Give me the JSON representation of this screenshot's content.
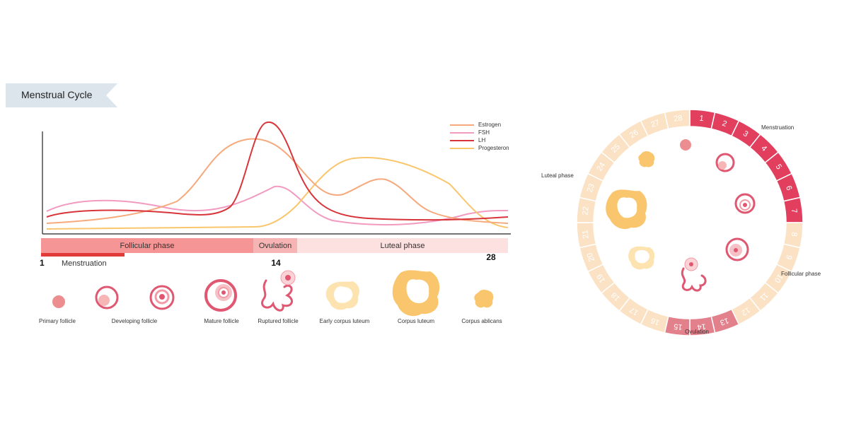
{
  "title": "Menstrual Cycle",
  "legend": [
    {
      "name": "Estrogen",
      "color": "#f6a97c"
    },
    {
      "name": "FSH",
      "color": "#f29ac0"
    },
    {
      "name": "LH",
      "color": "#d8353a"
    },
    {
      "name": "Progesteron",
      "color": "#f9c66e"
    }
  ],
  "phases": {
    "follicular": "Follicular phase",
    "ovulation": "Ovulation",
    "luteal": "Luteal phase",
    "menstruation": "Menstruation"
  },
  "days": {
    "start": "1",
    "ovulation": "14",
    "end": "28"
  },
  "stages": [
    {
      "label": "Primary follicle",
      "icon": "primary-follicle-icon"
    },
    {
      "label": "Developing follicle",
      "icon": "developing-follicle-icon"
    },
    {
      "label": "Mature follicle",
      "icon": "mature-follicle-icon"
    },
    {
      "label": "Ruptured follicle",
      "icon": "ruptured-follicle-icon"
    },
    {
      "label": "Early corpus luteum",
      "icon": "early-corpus-luteum-icon"
    },
    {
      "label": "Corpus luteum",
      "icon": "corpus-luteum-icon"
    },
    {
      "label": "Corpus ablicans",
      "icon": "corpus-albicans-icon"
    }
  ],
  "wheel": {
    "days": [
      "1",
      "2",
      "3",
      "4",
      "5",
      "6",
      "7",
      "8",
      "9",
      "10",
      "11",
      "12",
      "13",
      "14",
      "15",
      "16",
      "17",
      "18",
      "19",
      "20",
      "21",
      "22",
      "23",
      "24",
      "25",
      "26",
      "27",
      "28"
    ],
    "labels": {
      "menstruation": "Menstruation",
      "follicular": "Follicular phase",
      "ovulation": "Ovulation",
      "luteal": "Luteal phase"
    },
    "colors": {
      "menstruation": "#e23e5e",
      "ovulation": "#e2818c",
      "other": "#fbe2c4"
    }
  }
}
